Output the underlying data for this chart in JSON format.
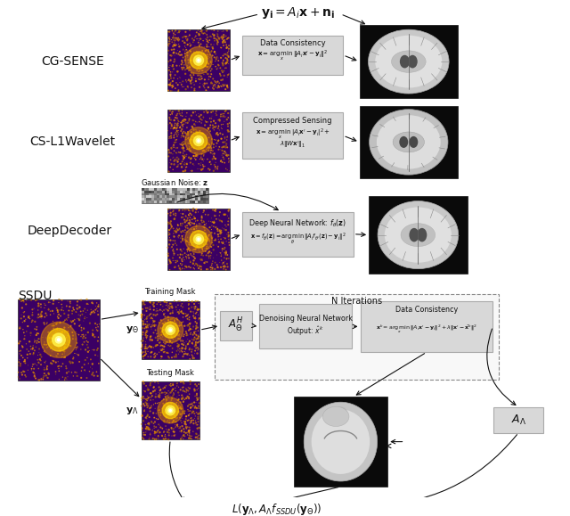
{
  "title_eq": "$\\mathbf{y_i} = A_i\\mathbf{x} + \\mathbf{n_i}$",
  "bg_color": "#ffffff",
  "box_color": "#d0d0d0",
  "arrow_color": "#222222",
  "label_cg": "CG-SENSE",
  "label_cs": "CS-L1Wavelet",
  "label_dd": "DeepDecoder",
  "label_ssdu": "SSDU",
  "box_dc_cg_line1": "Data Consistency",
  "box_dc_cg_line2": "$\\mathbf{x} = \\underset{x}{\\arg\\min}\\,\\|A_i\\mathbf{x}' - \\mathbf{y}_i\\|^2$",
  "box_cs_line1": "Compressed Sensing",
  "box_cs_line2": "$\\mathbf{x} = \\underset{x}{\\arg\\min}\\,|A_i\\mathbf{x}' - \\mathbf{y}_i|^2 +$",
  "box_cs_line3": "$\\lambda\\|W\\mathbf{x}'\\|_1$",
  "box_dnn_line1": "Deep Neural Network: $f_\\theta(\\mathbf{z})$",
  "box_dnn_line2": "$\\mathbf{x} = f_\\theta(\\mathbf{z}) = \\underset{\\theta}{\\arg\\min}\\,\\|A_i f_{\\theta'}(\\mathbf{z}) - \\mathbf{y}_i\\|^2$",
  "gaussian_label": "Gaussian Noise: $\\mathbf{z}$",
  "box_ah_label": "$A_\\Theta^H$",
  "box_dnn2_line1": "Denoising Neural Network",
  "box_dnn2_line2": "Output: $\\hat{x}^k$",
  "box_dc2_line1": "Data Consistency",
  "box_dc2_line2": "$\\mathbf{x}^k = \\underset{x}{\\arg\\min}\\,\\|A_i\\mathbf{x}' - \\mathbf{y}_i\\|^2 + \\lambda\\|\\mathbf{x}' - \\hat{\\mathbf{x}}^k\\|^2$",
  "n_iter_label": "N Iterations",
  "training_mask_label": "Training Mask",
  "testing_mask_label": "Testing Mask",
  "y_theta_label": "$\\mathbf{y}_\\Theta$",
  "y_lambda_label": "$\\mathbf{y}_\\Lambda$",
  "a_lambda_label": "$A_\\Lambda$",
  "loss_label": "$L(\\mathbf{y}_\\Lambda, A_\\Lambda f_{SSDU}(\\mathbf{y}_\\Theta))$",
  "kspace_bg": "#3b0064",
  "kspace_dot_colors": [
    "#cc8800",
    "#aa6600",
    "#ee9900",
    "#ffaa00",
    "#cc7700",
    "#ff9900",
    "#dd8800"
  ],
  "brain_bg": "#0a0a0a",
  "brain_gray": "#b0b0b0",
  "brain_mid": "#707070",
  "brain_dark": "#303030",
  "noise_bg": "#909090"
}
